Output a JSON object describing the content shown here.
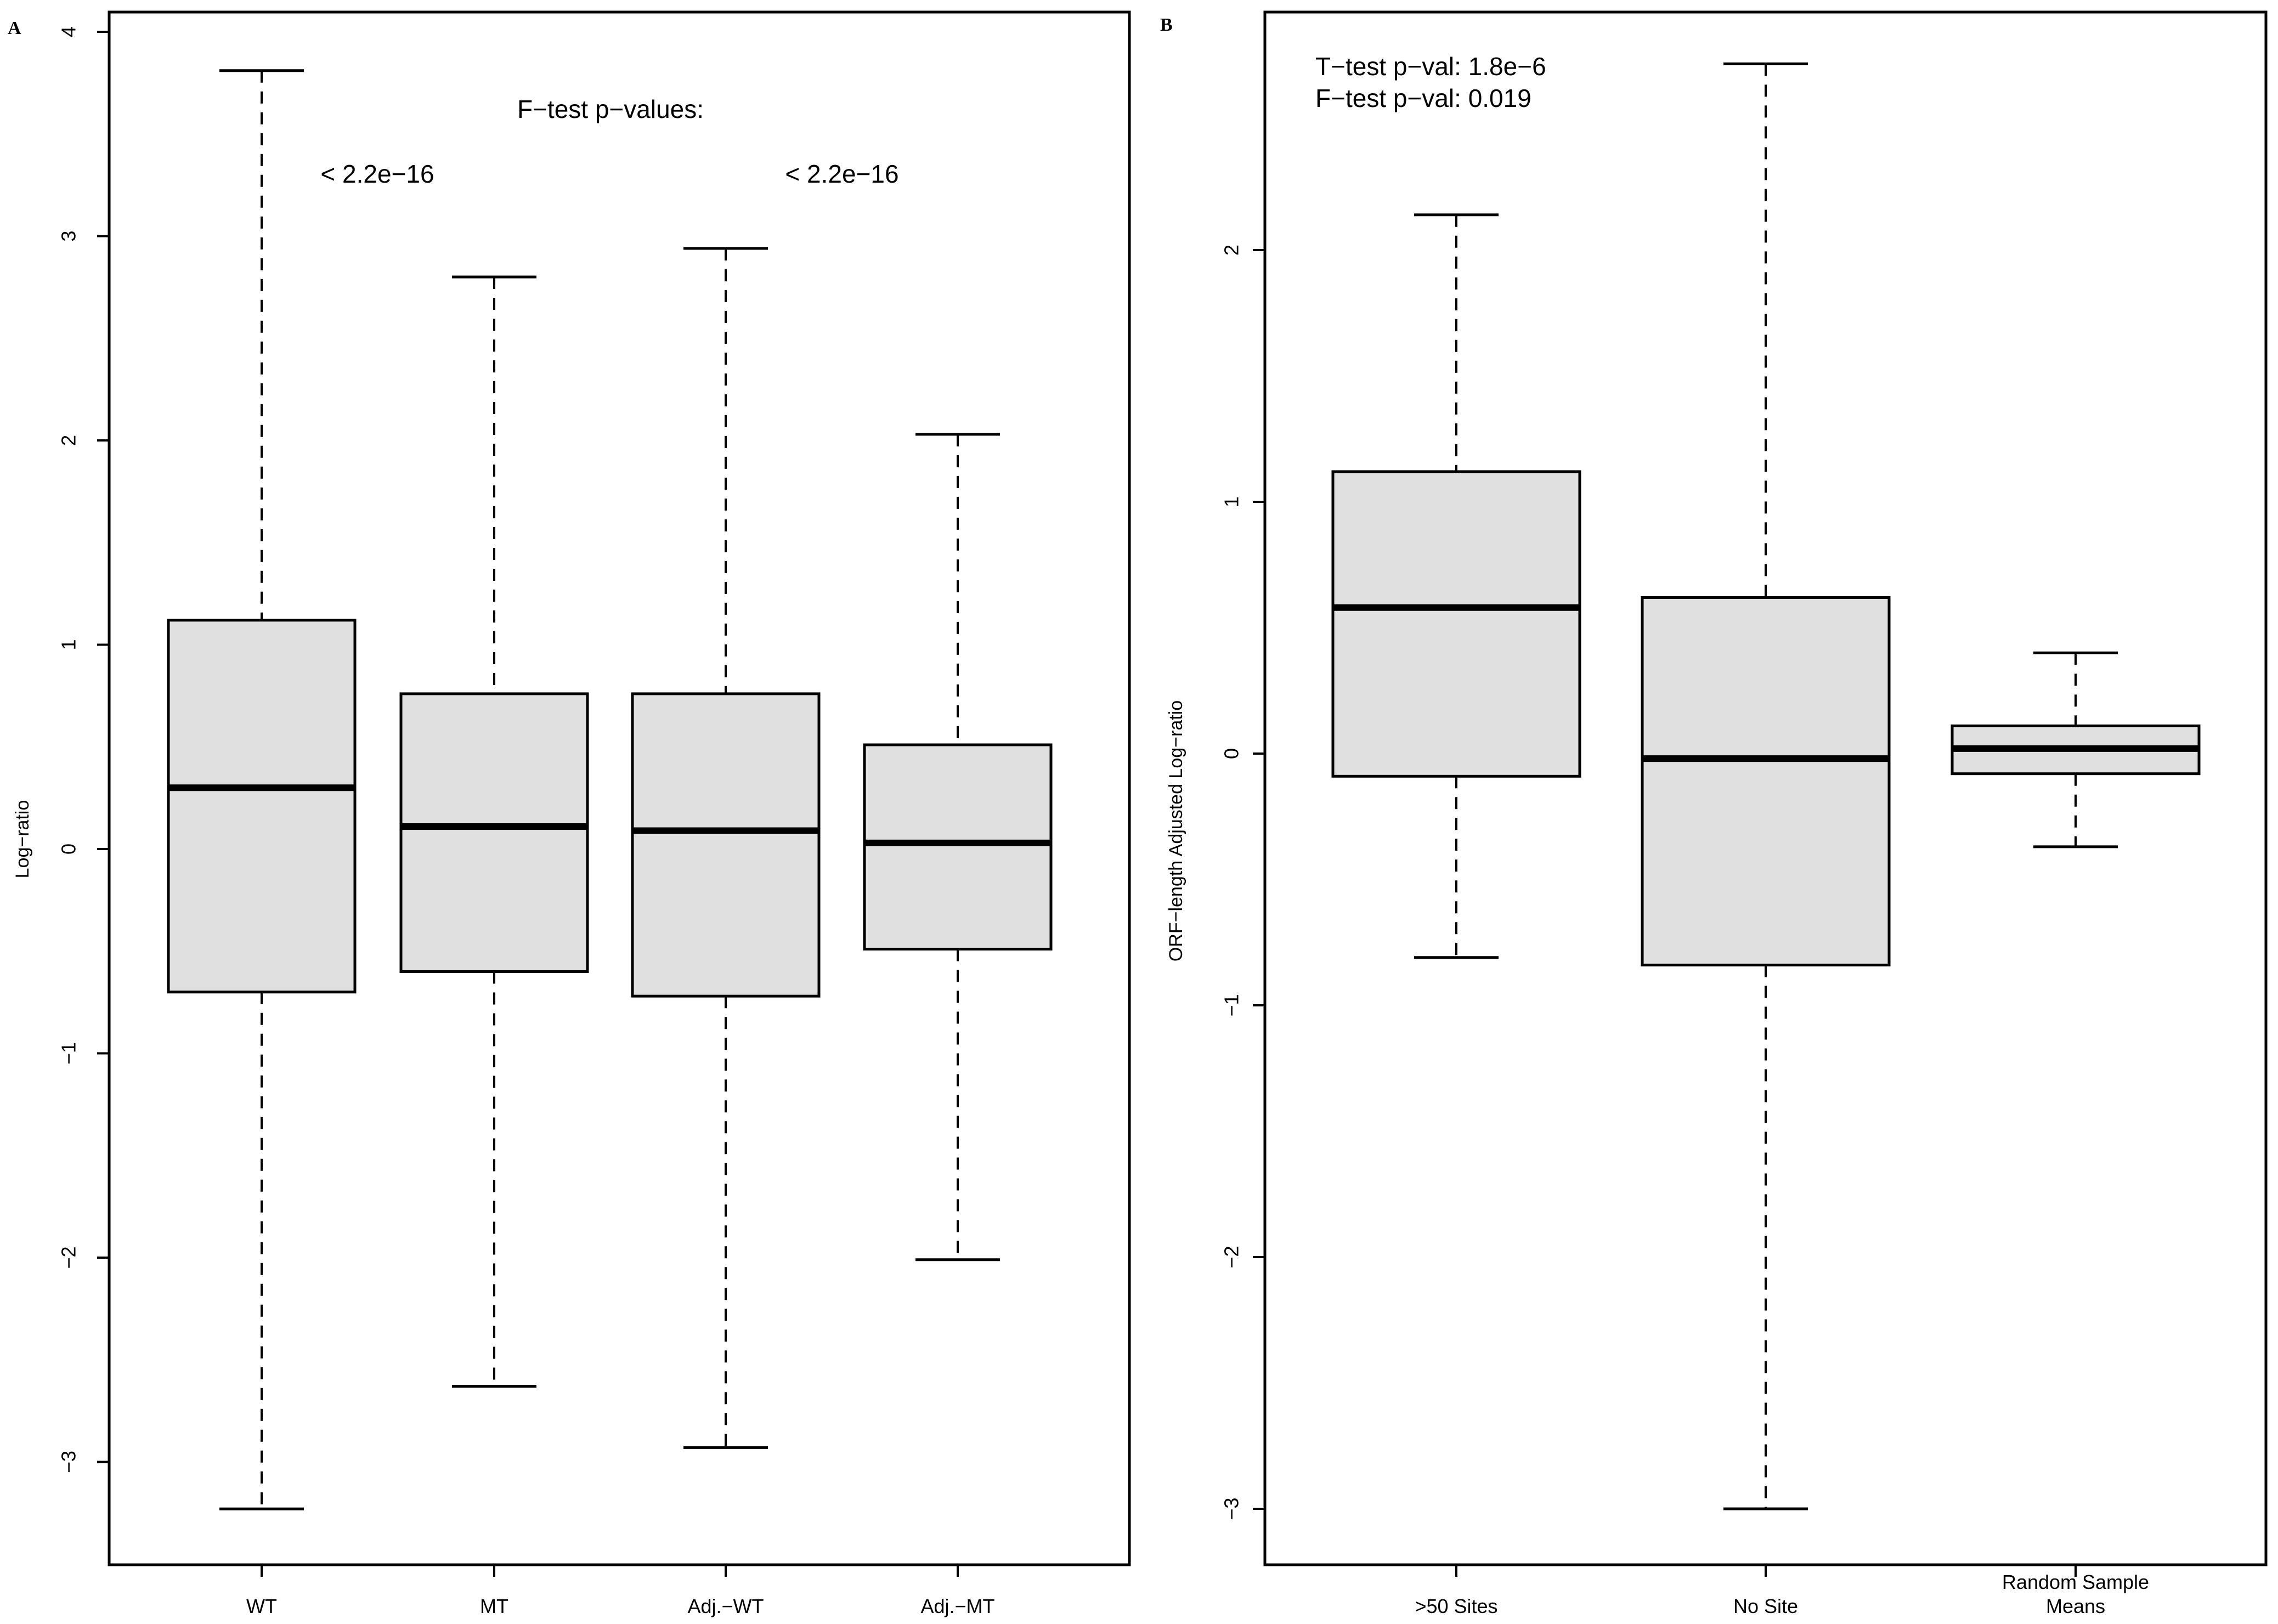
{
  "chart_data": [
    {
      "type": "boxplot",
      "panel_label": "A",
      "ylabel": "Log−ratio",
      "xlabel": "",
      "ylim": [
        -3.5,
        4.1
      ],
      "yticks": [
        -3,
        -2,
        -1,
        0,
        1,
        2,
        3,
        4
      ],
      "ytick_labels": [
        "−3",
        "−2",
        "−1",
        "0",
        "1",
        "2",
        "3",
        "4"
      ],
      "categories": [
        "WT",
        "MT",
        "Adj.−WT",
        "Adj.−MT"
      ],
      "boxes": [
        {
          "name": "WT",
          "whisker_low": -3.23,
          "q1": -0.7,
          "median": 0.3,
          "q3": 1.12,
          "whisker_high": 3.81
        },
        {
          "name": "MT",
          "whisker_low": -2.63,
          "q1": -0.6,
          "median": 0.11,
          "q3": 0.76,
          "whisker_high": 2.8
        },
        {
          "name": "Adj.−WT",
          "whisker_low": -2.93,
          "q1": -0.72,
          "median": 0.09,
          "q3": 0.76,
          "whisker_high": 2.94
        },
        {
          "name": "Adj.−MT",
          "whisker_low": -2.01,
          "q1": -0.49,
          "median": 0.03,
          "q3": 0.51,
          "whisker_high": 2.03
        }
      ],
      "annotations": {
        "title": "F−test p−values:",
        "pval_1": "< 2.2e−16",
        "pval_2": "< 2.2e−16"
      }
    },
    {
      "type": "boxplot",
      "panel_label": "B",
      "ylabel": "ORF−length Adjusted Log−ratio",
      "xlabel": "",
      "ylim": [
        -3.22,
        2.95
      ],
      "yticks": [
        -3,
        -2,
        -1,
        0,
        1,
        2
      ],
      "ytick_labels": [
        "−3",
        "−2",
        "−1",
        "0",
        "1",
        "2"
      ],
      "categories": [
        ">50 Sites",
        "No Site",
        "Random Sample Means"
      ],
      "category_lines": [
        [
          ">50 Sites"
        ],
        [
          "No Site"
        ],
        [
          "Random Sample",
          "Means"
        ]
      ],
      "boxes": [
        {
          "name": ">50 Sites",
          "whisker_low": -0.81,
          "q1": -0.09,
          "median": 0.58,
          "q3": 1.12,
          "whisker_high": 2.14
        },
        {
          "name": "No Site",
          "whisker_low": -3.0,
          "q1": -0.84,
          "median": -0.02,
          "q3": 0.62,
          "whisker_high": 2.74
        },
        {
          "name": "Random Sample Means",
          "whisker_low": -0.37,
          "q1": -0.08,
          "median": 0.02,
          "q3": 0.11,
          "whisker_high": 0.4
        }
      ],
      "annotations": {
        "ttest": "T−test p−val: 1.8e−6",
        "ftest": "F−test p−val: 0.019"
      }
    }
  ],
  "colors": {
    "box_fill": "#e0e0e0",
    "stroke": "#000000",
    "background": "#ffffff"
  }
}
